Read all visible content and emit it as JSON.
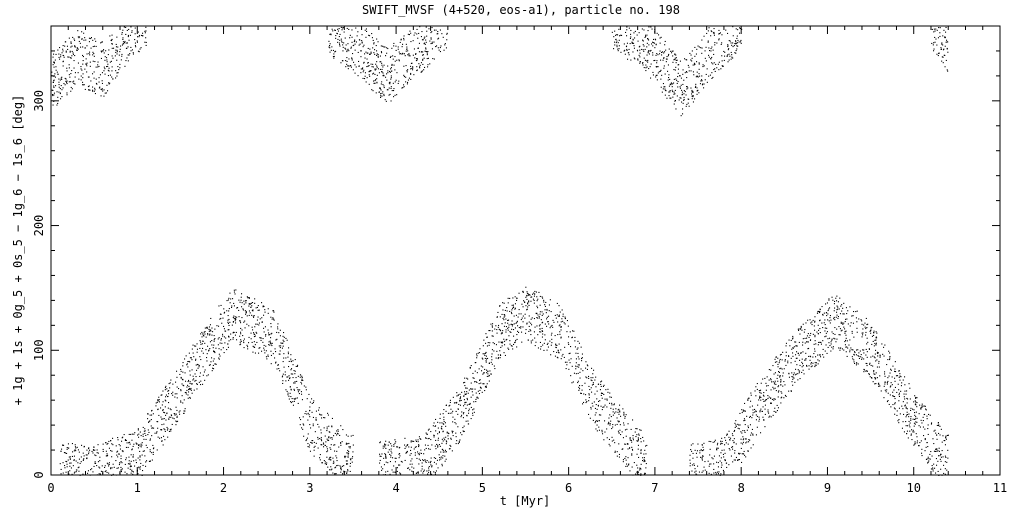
{
  "chart_data": {
    "type": "scatter",
    "title": "SWIFT_MVSF (4+520, eos-a1), particle no. 198",
    "xlabel": "t [Myr]",
    "ylabel": "+ 1g + 1s + 0g_5 + 0s_5 − 1g_6 − 1s_6 [deg]",
    "xlim": [
      0,
      11
    ],
    "ylim": [
      0,
      360
    ],
    "x_ticks": [
      "0",
      "1",
      "2",
      "3",
      "4",
      "5",
      "6",
      "7",
      "8",
      "9",
      "10",
      "11"
    ],
    "y_ticks": [
      "0",
      "100",
      "200",
      "300"
    ],
    "grid": false,
    "series": [
      {
        "style": "dots",
        "color": "#000000",
        "bands": [
          {
            "x": [
              0.1,
              0.5,
              1.0,
              1.8,
              2.1,
              2.6,
              3.0,
              3.5
            ],
            "y": [
              5,
              2,
              15,
              100,
              130,
              110,
              40,
              10
            ],
            "width": 45
          },
          {
            "x": [
              3.8,
              4.3,
              4.7,
              5.2,
              5.5,
              5.9,
              6.3,
              6.9
            ],
            "y": [
              5,
              10,
              45,
              115,
              130,
              115,
              60,
              8
            ],
            "width": 45
          },
          {
            "x": [
              7.4,
              7.8,
              8.2,
              8.7,
              9.1,
              9.5,
              10.0,
              10.4
            ],
            "y": [
              3,
              8,
              55,
              100,
              125,
              100,
              45,
              10
            ],
            "width": 45
          },
          {
            "x": [
              0.0,
              0.3,
              0.6,
              0.9,
              1.1
            ],
            "y": [
              315,
              335,
              325,
              355,
              365
            ],
            "width": 45
          },
          {
            "x": [
              3.2,
              3.5,
              3.9,
              4.2,
              4.6
            ],
            "y": [
              360,
              345,
              320,
              340,
              365
            ],
            "width": 45
          },
          {
            "x": [
              6.5,
              6.9,
              7.3,
              7.6,
              8.0
            ],
            "y": [
              365,
              345,
              310,
              335,
              365
            ],
            "width": 45
          },
          {
            "x": [
              10.2,
              10.3,
              10.4
            ],
            "y": [
              360,
              350,
              340
            ],
            "width": 35
          }
        ]
      }
    ]
  }
}
